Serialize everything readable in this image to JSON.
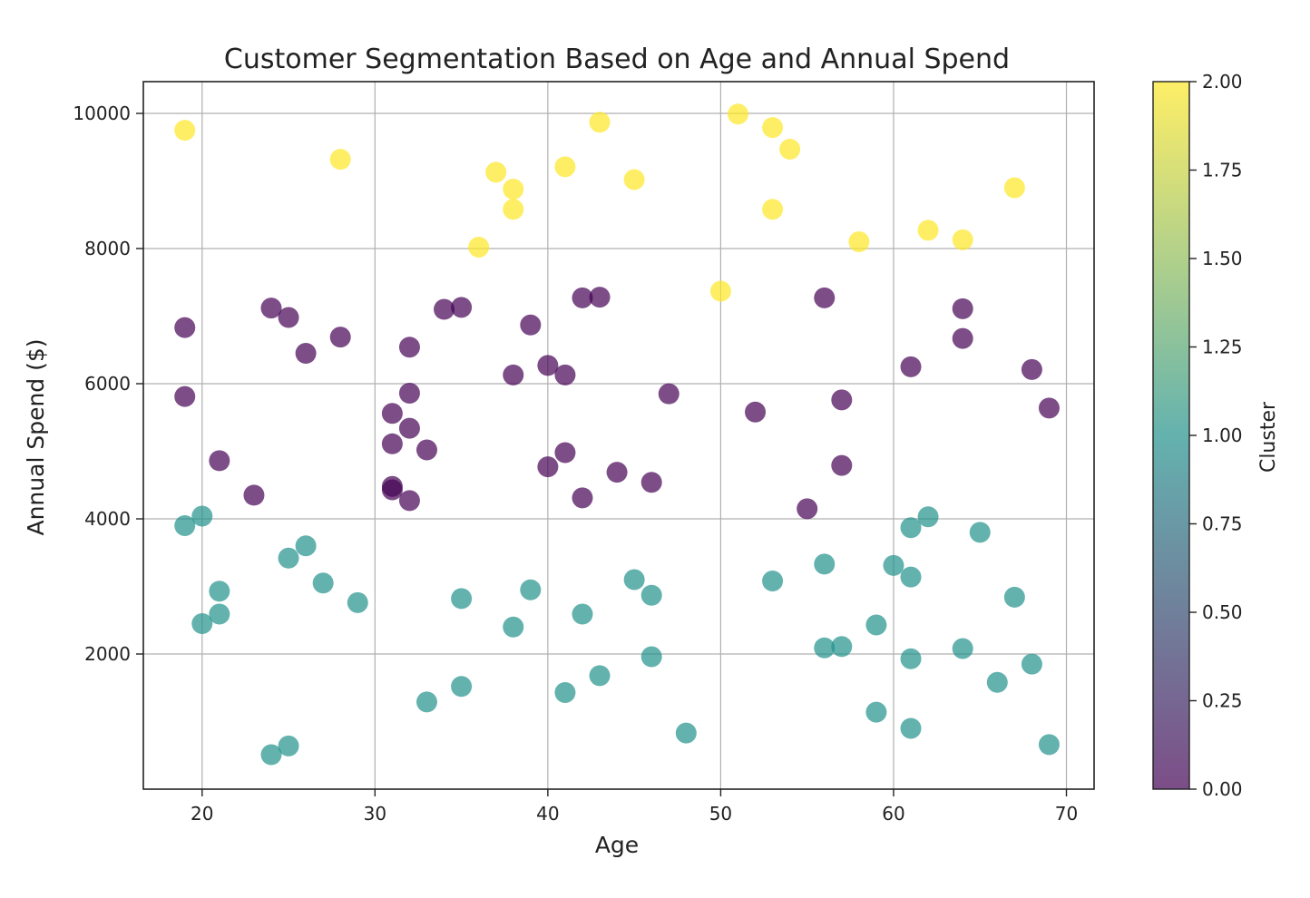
{
  "chart_data": {
    "type": "scatter",
    "title": "Customer Segmentation Based on Age and Annual Spend",
    "xlabel": "Age",
    "ylabel": "Annual Spend ($)",
    "xlim": [
      16.6,
      71.6
    ],
    "ylim": [
      0,
      10470
    ],
    "xticks": [
      20,
      30,
      40,
      50,
      60,
      70
    ],
    "yticks": [
      2000,
      4000,
      6000,
      8000,
      10000
    ],
    "grid": true,
    "colormap": "viridis",
    "point_alpha": 0.7,
    "colorbar": {
      "label": "Cluster",
      "min": 0.0,
      "max": 2.0,
      "ticks": [
        "0.00",
        "0.25",
        "0.50",
        "0.75",
        "1.00",
        "1.25",
        "1.50",
        "1.75",
        "2.00"
      ],
      "colors": [
        "#440154",
        "#21918c",
        "#fde725"
      ]
    },
    "points": [
      {
        "x": 19,
        "y": 9750,
        "cluster": 2
      },
      {
        "x": 28,
        "y": 9320,
        "cluster": 2
      },
      {
        "x": 37,
        "y": 9130,
        "cluster": 2
      },
      {
        "x": 38,
        "y": 8880,
        "cluster": 2
      },
      {
        "x": 38,
        "y": 8580,
        "cluster": 2
      },
      {
        "x": 36,
        "y": 8020,
        "cluster": 2
      },
      {
        "x": 41,
        "y": 9210,
        "cluster": 2
      },
      {
        "x": 43,
        "y": 9870,
        "cluster": 2
      },
      {
        "x": 45,
        "y": 9020,
        "cluster": 2
      },
      {
        "x": 50,
        "y": 7370,
        "cluster": 2
      },
      {
        "x": 51,
        "y": 9990,
        "cluster": 2
      },
      {
        "x": 53,
        "y": 9790,
        "cluster": 2
      },
      {
        "x": 54,
        "y": 9470,
        "cluster": 2
      },
      {
        "x": 53,
        "y": 8580,
        "cluster": 2
      },
      {
        "x": 58,
        "y": 8100,
        "cluster": 2
      },
      {
        "x": 62,
        "y": 8270,
        "cluster": 2
      },
      {
        "x": 64,
        "y": 8130,
        "cluster": 2
      },
      {
        "x": 67,
        "y": 8900,
        "cluster": 2
      },
      {
        "x": 19,
        "y": 6830,
        "cluster": 0
      },
      {
        "x": 19,
        "y": 5810,
        "cluster": 0
      },
      {
        "x": 21,
        "y": 4860,
        "cluster": 0
      },
      {
        "x": 23,
        "y": 4350,
        "cluster": 0
      },
      {
        "x": 24,
        "y": 7120,
        "cluster": 0
      },
      {
        "x": 25,
        "y": 6980,
        "cluster": 0
      },
      {
        "x": 26,
        "y": 6450,
        "cluster": 0
      },
      {
        "x": 28,
        "y": 6690,
        "cluster": 0
      },
      {
        "x": 31,
        "y": 5560,
        "cluster": 0
      },
      {
        "x": 31,
        "y": 5110,
        "cluster": 0
      },
      {
        "x": 31,
        "y": 4480,
        "cluster": 0
      },
      {
        "x": 31,
        "y": 4430,
        "cluster": 0
      },
      {
        "x": 32,
        "y": 6540,
        "cluster": 0
      },
      {
        "x": 32,
        "y": 5860,
        "cluster": 0
      },
      {
        "x": 32,
        "y": 5340,
        "cluster": 0
      },
      {
        "x": 32,
        "y": 4270,
        "cluster": 0
      },
      {
        "x": 33,
        "y": 5020,
        "cluster": 0
      },
      {
        "x": 34,
        "y": 7100,
        "cluster": 0
      },
      {
        "x": 35,
        "y": 7130,
        "cluster": 0
      },
      {
        "x": 38,
        "y": 6130,
        "cluster": 0
      },
      {
        "x": 39,
        "y": 6870,
        "cluster": 0
      },
      {
        "x": 40,
        "y": 6270,
        "cluster": 0
      },
      {
        "x": 40,
        "y": 4770,
        "cluster": 0
      },
      {
        "x": 41,
        "y": 6130,
        "cluster": 0
      },
      {
        "x": 41,
        "y": 4980,
        "cluster": 0
      },
      {
        "x": 42,
        "y": 7270,
        "cluster": 0
      },
      {
        "x": 42,
        "y": 4310,
        "cluster": 0
      },
      {
        "x": 43,
        "y": 7280,
        "cluster": 0
      },
      {
        "x": 44,
        "y": 4690,
        "cluster": 0
      },
      {
        "x": 46,
        "y": 4540,
        "cluster": 0
      },
      {
        "x": 47,
        "y": 5850,
        "cluster": 0
      },
      {
        "x": 52,
        "y": 5580,
        "cluster": 0
      },
      {
        "x": 55,
        "y": 4150,
        "cluster": 0
      },
      {
        "x": 56,
        "y": 7270,
        "cluster": 0
      },
      {
        "x": 57,
        "y": 5760,
        "cluster": 0
      },
      {
        "x": 57,
        "y": 4790,
        "cluster": 0
      },
      {
        "x": 61,
        "y": 6250,
        "cluster": 0
      },
      {
        "x": 64,
        "y": 7110,
        "cluster": 0
      },
      {
        "x": 64,
        "y": 6670,
        "cluster": 0
      },
      {
        "x": 68,
        "y": 6210,
        "cluster": 0
      },
      {
        "x": 69,
        "y": 5640,
        "cluster": 0
      },
      {
        "x": 19,
        "y": 3900,
        "cluster": 1
      },
      {
        "x": 20,
        "y": 4040,
        "cluster": 1
      },
      {
        "x": 20,
        "y": 2450,
        "cluster": 1
      },
      {
        "x": 21,
        "y": 2930,
        "cluster": 1
      },
      {
        "x": 21,
        "y": 2590,
        "cluster": 1
      },
      {
        "x": 24,
        "y": 510,
        "cluster": 1
      },
      {
        "x": 25,
        "y": 640,
        "cluster": 1
      },
      {
        "x": 25,
        "y": 3420,
        "cluster": 1
      },
      {
        "x": 26,
        "y": 3600,
        "cluster": 1
      },
      {
        "x": 27,
        "y": 3050,
        "cluster": 1
      },
      {
        "x": 29,
        "y": 2760,
        "cluster": 1
      },
      {
        "x": 33,
        "y": 1290,
        "cluster": 1
      },
      {
        "x": 35,
        "y": 2820,
        "cluster": 1
      },
      {
        "x": 35,
        "y": 1520,
        "cluster": 1
      },
      {
        "x": 38,
        "y": 2400,
        "cluster": 1
      },
      {
        "x": 39,
        "y": 2950,
        "cluster": 1
      },
      {
        "x": 41,
        "y": 1430,
        "cluster": 1
      },
      {
        "x": 42,
        "y": 2590,
        "cluster": 1
      },
      {
        "x": 43,
        "y": 1680,
        "cluster": 1
      },
      {
        "x": 45,
        "y": 3100,
        "cluster": 1
      },
      {
        "x": 46,
        "y": 2870,
        "cluster": 1
      },
      {
        "x": 46,
        "y": 1960,
        "cluster": 1
      },
      {
        "x": 48,
        "y": 830,
        "cluster": 1
      },
      {
        "x": 53,
        "y": 3080,
        "cluster": 1
      },
      {
        "x": 56,
        "y": 3330,
        "cluster": 1
      },
      {
        "x": 56,
        "y": 2090,
        "cluster": 1
      },
      {
        "x": 57,
        "y": 2110,
        "cluster": 1
      },
      {
        "x": 59,
        "y": 2430,
        "cluster": 1
      },
      {
        "x": 59,
        "y": 1140,
        "cluster": 1
      },
      {
        "x": 60,
        "y": 3310,
        "cluster": 1
      },
      {
        "x": 61,
        "y": 3870,
        "cluster": 1
      },
      {
        "x": 61,
        "y": 3140,
        "cluster": 1
      },
      {
        "x": 61,
        "y": 1930,
        "cluster": 1
      },
      {
        "x": 61,
        "y": 900,
        "cluster": 1
      },
      {
        "x": 62,
        "y": 4030,
        "cluster": 1
      },
      {
        "x": 64,
        "y": 2080,
        "cluster": 1
      },
      {
        "x": 65,
        "y": 3800,
        "cluster": 1
      },
      {
        "x": 66,
        "y": 1580,
        "cluster": 1
      },
      {
        "x": 67,
        "y": 2840,
        "cluster": 1
      },
      {
        "x": 68,
        "y": 1850,
        "cluster": 1
      },
      {
        "x": 69,
        "y": 660,
        "cluster": 1
      }
    ]
  }
}
